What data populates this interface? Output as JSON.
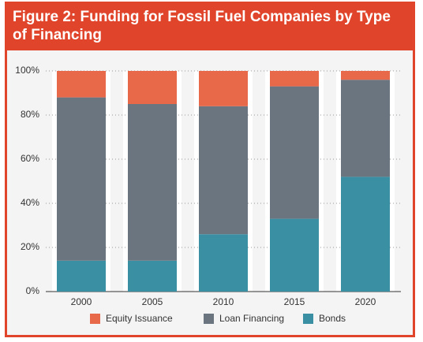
{
  "chart_data": {
    "type": "stacked-bar",
    "title": "Figure 2: Funding for Fossil Fuel Companies by Type of Financing",
    "categories": [
      "2000",
      "2005",
      "2010",
      "2015",
      "2020"
    ],
    "series": [
      {
        "name": "Equity Issuance",
        "color": "#e8694a",
        "values": [
          12,
          15,
          16,
          7,
          4
        ]
      },
      {
        "name": "Loan Financing",
        "color": "#6b7580",
        "values": [
          74,
          71,
          58,
          60,
          44
        ]
      },
      {
        "name": "Bonds",
        "color": "#3a8fa3",
        "values": [
          14,
          14,
          26,
          33,
          52
        ]
      }
    ],
    "ylim": [
      0,
      100
    ],
    "yticks": [
      {
        "value": 0,
        "label": "0%"
      },
      {
        "value": 20,
        "label": "20%"
      },
      {
        "value": 40,
        "label": "40%"
      },
      {
        "value": 60,
        "label": "60%"
      },
      {
        "value": 80,
        "label": "80%"
      },
      {
        "value": 100,
        "label": "100%"
      }
    ],
    "grid": true
  }
}
